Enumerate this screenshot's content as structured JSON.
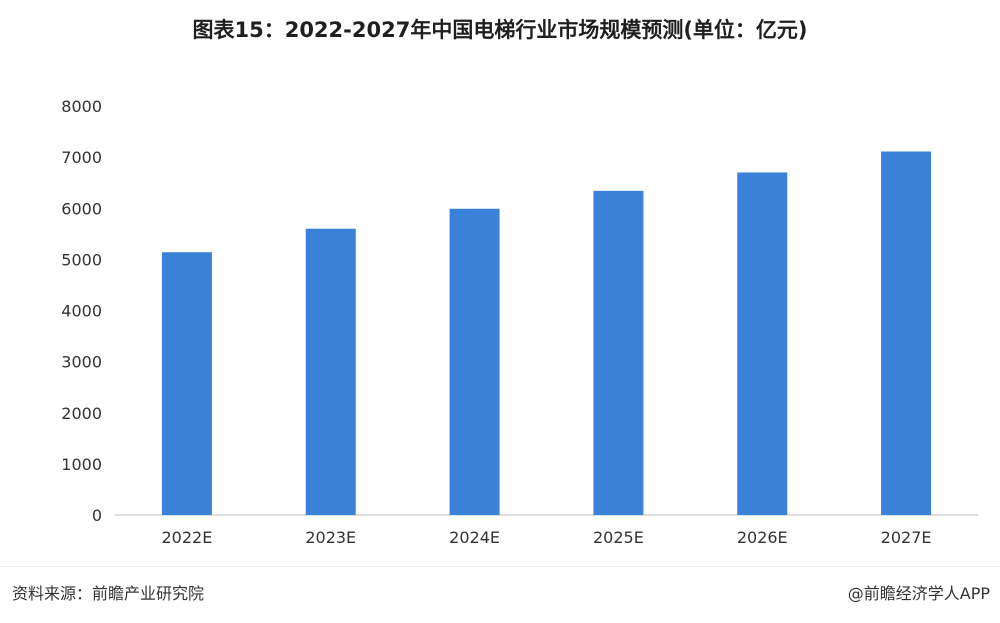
{
  "header": {
    "title": "图表15：2022-2027年中国电梯行业市场规模预测(单位：亿元)"
  },
  "footer": {
    "source": "资料来源：前瞻产业研究院",
    "brand": "@前瞻经济学人APP"
  },
  "chart_data": {
    "type": "bar",
    "title": "图表15：2022-2027年中国电梯行业市场规模预测(单位：亿元)",
    "categories": [
      "2022E",
      "2023E",
      "2024E",
      "2025E",
      "2026E",
      "2027E"
    ],
    "values": [
      5140,
      5600,
      5990,
      6340,
      6700,
      7110
    ],
    "ylim": [
      0,
      8000
    ],
    "yticks": [
      0,
      1000,
      2000,
      3000,
      4000,
      5000,
      6000,
      7000,
      8000
    ],
    "grid": false,
    "bar_color": "#3a82d8",
    "axis_color": "#bfbfbf"
  }
}
